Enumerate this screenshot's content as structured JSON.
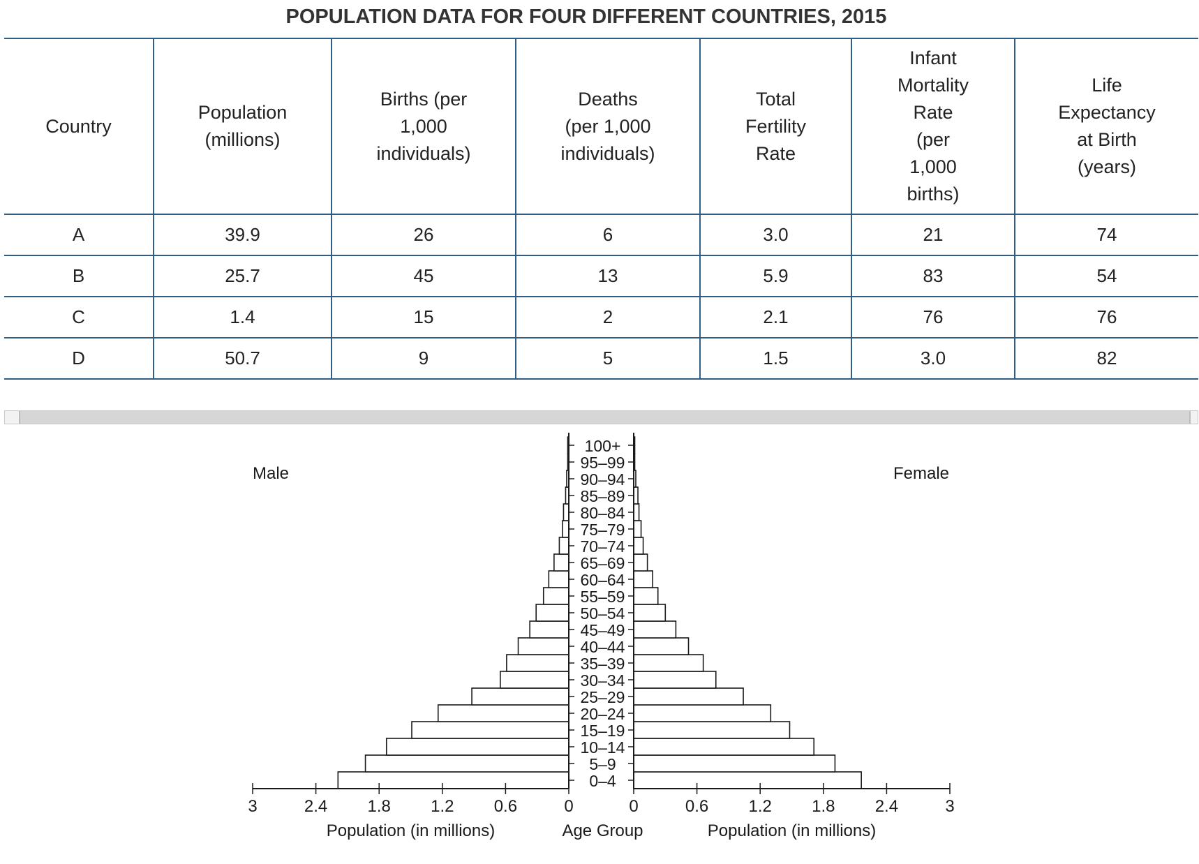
{
  "title": "POPULATION DATA FOR FOUR DIFFERENT COUNTRIES, 2015",
  "table": {
    "headers": [
      [
        "Country"
      ],
      [
        "Population",
        "(millions)"
      ],
      [
        "Births (per",
        "1,000",
        "individuals)"
      ],
      [
        "Deaths",
        "(per 1,000",
        "individuals)"
      ],
      [
        "Total",
        "Fertility",
        "Rate"
      ],
      [
        "Infant",
        "Mortality",
        "Rate",
        "(per",
        "1,000",
        "births)"
      ],
      [
        "Life",
        "Expectancy",
        "at Birth",
        "(years)"
      ]
    ],
    "rows": [
      [
        "A",
        "39.9",
        "26",
        "6",
        "3.0",
        "21",
        "74"
      ],
      [
        "B",
        "25.7",
        "45",
        "13",
        "5.9",
        "83",
        "54"
      ],
      [
        "C",
        "1.4",
        "15",
        "2",
        "2.1",
        "76",
        "76"
      ],
      [
        "D",
        "50.7",
        "9",
        "5",
        "1.5",
        "3.0",
        "82"
      ]
    ]
  },
  "chart_data": {
    "type": "bar",
    "orientation": "horizontal population pyramid",
    "left_label": "Male",
    "right_label": "Female",
    "xlabel_left": "Population (in millions)",
    "xlabel_right": "Population (in millions)",
    "center_label": "Age Group",
    "xlim": [
      0,
      3
    ],
    "xticks": [
      "0",
      "0.6",
      "1.2",
      "1.8",
      "2.4",
      "3"
    ],
    "categories": [
      "0–4",
      "5–9",
      "10–14",
      "15–19",
      "20–24",
      "25–29",
      "30–34",
      "35–39",
      "40–44",
      "45–49",
      "50–54",
      "55–59",
      "60–64",
      "65–69",
      "70–74",
      "75–79",
      "80–84",
      "85–89",
      "90–94",
      "95–99",
      "100+"
    ],
    "series": [
      {
        "name": "Male",
        "values": [
          2.19,
          1.93,
          1.73,
          1.49,
          1.24,
          0.92,
          0.65,
          0.59,
          0.48,
          0.37,
          0.31,
          0.24,
          0.19,
          0.14,
          0.09,
          0.06,
          0.05,
          0.03,
          0.02,
          0.01,
          0.01
        ]
      },
      {
        "name": "Female",
        "values": [
          2.16,
          1.91,
          1.71,
          1.48,
          1.3,
          1.04,
          0.78,
          0.66,
          0.52,
          0.4,
          0.3,
          0.23,
          0.18,
          0.13,
          0.09,
          0.07,
          0.05,
          0.04,
          0.02,
          0.01,
          0.01
        ]
      }
    ]
  }
}
